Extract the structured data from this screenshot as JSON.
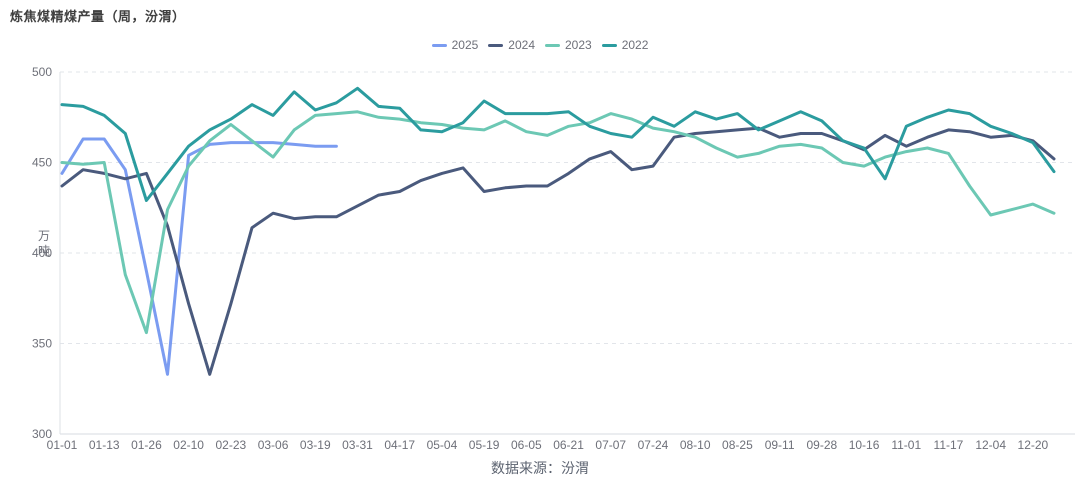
{
  "page": {
    "title": "炼焦煤精煤产量（周，汾渭）",
    "source_note": "数据来源：汾渭"
  },
  "chart_data": {
    "type": "line",
    "title": "炼焦煤精煤产量（周，汾渭）",
    "source": "数据来源：汾渭",
    "ylabel": "万吨",
    "ylim": [
      300,
      500
    ],
    "y_ticks": [
      300,
      350,
      400,
      450,
      500
    ],
    "grid": "horizontal-dashed",
    "legend_position": "top-center",
    "x_tick_interval": 2,
    "x_tick_labels": [
      "01-01",
      "01-13",
      "01-26",
      "02-10",
      "02-23",
      "03-06",
      "03-19",
      "03-31",
      "04-17",
      "05-04",
      "05-19",
      "06-05",
      "06-21",
      "07-07",
      "07-24",
      "08-10",
      "08-25",
      "09-11",
      "09-28",
      "10-16",
      "11-01",
      "11-17",
      "12-04",
      "12-20"
    ],
    "categories": [
      "01-01",
      "01-07",
      "01-13",
      "01-20",
      "01-26",
      "02-03",
      "02-10",
      "02-17",
      "02-23",
      "03-01",
      "03-06",
      "03-12",
      "03-19",
      "03-25",
      "03-31",
      "04-08",
      "04-17",
      "04-25",
      "05-04",
      "05-11",
      "05-19",
      "05-27",
      "06-05",
      "06-13",
      "06-21",
      "06-28",
      "07-07",
      "07-15",
      "07-24",
      "08-01",
      "08-10",
      "08-17",
      "08-25",
      "09-03",
      "09-11",
      "09-19",
      "09-28",
      "10-08",
      "10-16",
      "10-24",
      "11-01",
      "11-09",
      "11-17",
      "11-25",
      "12-04",
      "12-12",
      "12-20",
      "12-27"
    ],
    "series": [
      {
        "name": "2025",
        "color": "#7B9CF1",
        "values": [
          444,
          463,
          463,
          446,
          390,
          333,
          454,
          460,
          461,
          461,
          461,
          460,
          459,
          459
        ]
      },
      {
        "name": "2024",
        "color": "#4A5A7D",
        "values": [
          437,
          446,
          444,
          441,
          444,
          415,
          372,
          333,
          372,
          414,
          422,
          419,
          420,
          420,
          426,
          432,
          434,
          440,
          444,
          447,
          434,
          436,
          437,
          437,
          444,
          452,
          456,
          446,
          448,
          464,
          466,
          467,
          468,
          469,
          464,
          466,
          466,
          462,
          457,
          465,
          459,
          464,
          468,
          467,
          464,
          465,
          462,
          452
        ]
      },
      {
        "name": "2023",
        "color": "#6CC8B4",
        "values": [
          450,
          449,
          450,
          388,
          356,
          424,
          448,
          462,
          471,
          462,
          453,
          468,
          476,
          477,
          478,
          475,
          474,
          472,
          471,
          469,
          468,
          473,
          467,
          465,
          470,
          472,
          477,
          474,
          469,
          467,
          464,
          458,
          453,
          455,
          459,
          460,
          458,
          450,
          448,
          453,
          456,
          458,
          455,
          437,
          421,
          424,
          427,
          422
        ]
      },
      {
        "name": "2022",
        "color": "#2B9C9F",
        "values": [
          482,
          481,
          476,
          466,
          429,
          444,
          459,
          468,
          474,
          482,
          476,
          489,
          479,
          483,
          491,
          481,
          480,
          468,
          467,
          472,
          484,
          477,
          477,
          477,
          478,
          470,
          466,
          464,
          475,
          470,
          478,
          474,
          477,
          468,
          473,
          478,
          473,
          462,
          458,
          441,
          470,
          475,
          479,
          477,
          470,
          466,
          461,
          445
        ]
      }
    ]
  }
}
